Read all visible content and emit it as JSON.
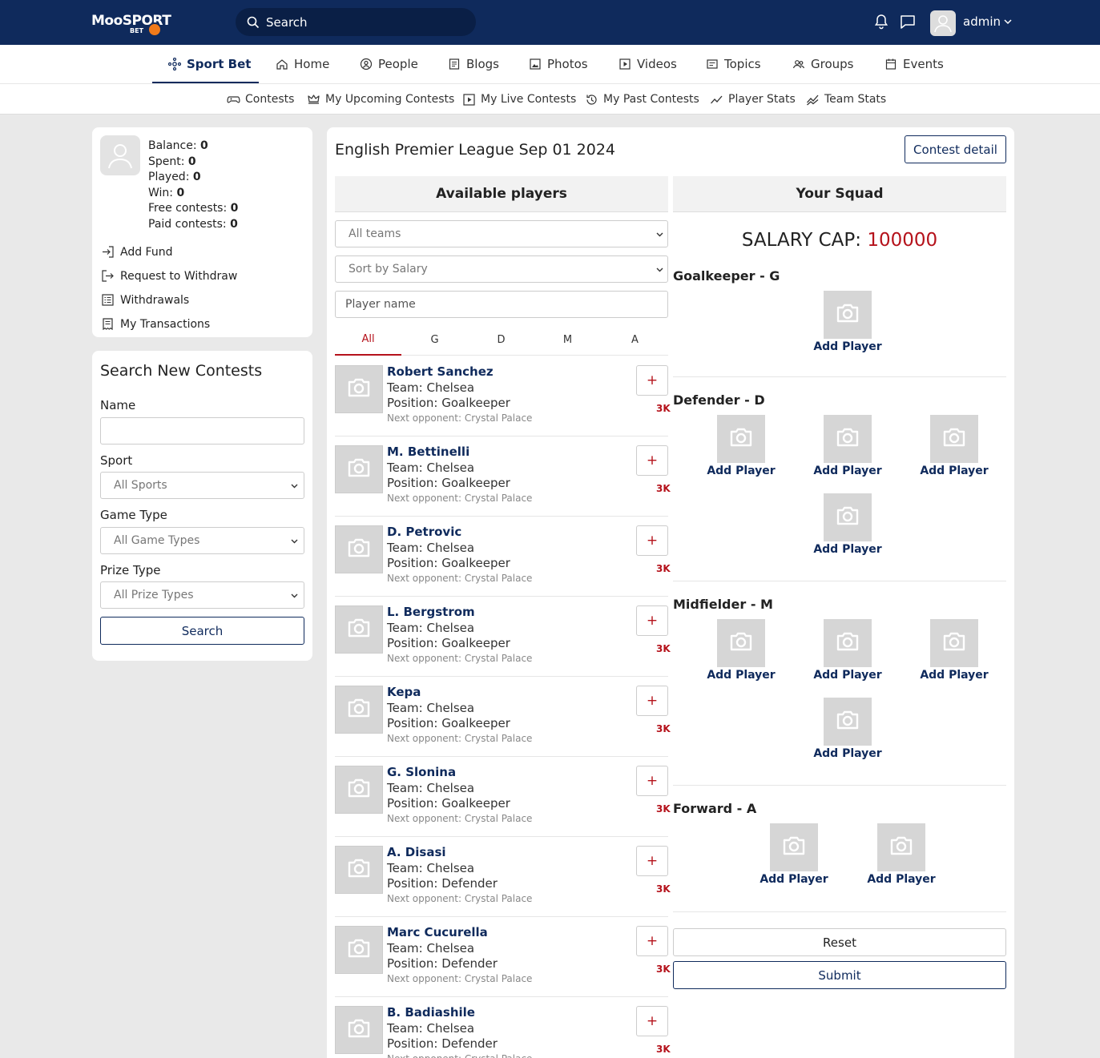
{
  "header": {
    "logo_text": "MooSPORT",
    "logo_sub": "BET",
    "search_placeholder": "Search",
    "user_name": "admin"
  },
  "main_nav": {
    "items": [
      {
        "label": "Sport Bet",
        "icon": "sport-bet-icon"
      },
      {
        "label": "Home",
        "icon": "home-icon"
      },
      {
        "label": "People",
        "icon": "people-icon"
      },
      {
        "label": "Blogs",
        "icon": "blogs-icon"
      },
      {
        "label": "Photos",
        "icon": "photos-icon"
      },
      {
        "label": "Videos",
        "icon": "videos-icon"
      },
      {
        "label": "Topics",
        "icon": "topics-icon"
      },
      {
        "label": "Groups",
        "icon": "groups-icon"
      },
      {
        "label": "Events",
        "icon": "events-icon"
      }
    ]
  },
  "sub_nav": {
    "items": [
      {
        "label": "Contests",
        "icon": "gamepad-icon"
      },
      {
        "label": "My Upcoming Contests",
        "icon": "crown-icon"
      },
      {
        "label": "My Live Contests",
        "icon": "play-icon"
      },
      {
        "label": "My Past Contests",
        "icon": "history-icon"
      },
      {
        "label": "Player Stats",
        "icon": "chart-line-icon"
      },
      {
        "label": "Team Stats",
        "icon": "chart-line-double-icon"
      }
    ]
  },
  "profile": {
    "stats": [
      {
        "label": "Balance:",
        "value": "0"
      },
      {
        "label": "Spent:",
        "value": "0"
      },
      {
        "label": "Played:",
        "value": "0"
      },
      {
        "label": "Win:",
        "value": "0"
      },
      {
        "label": "Free contests:",
        "value": "0"
      },
      {
        "label": "Paid contests:",
        "value": "0"
      }
    ],
    "links": [
      {
        "label": "Add Fund",
        "icon": "sign-in-icon"
      },
      {
        "label": "Request to Withdraw",
        "icon": "sign-out-icon"
      },
      {
        "label": "Withdrawals",
        "icon": "list-icon"
      },
      {
        "label": "My Transactions",
        "icon": "receipt-icon"
      }
    ]
  },
  "search_contests": {
    "title": "Search New Contests",
    "name_label": "Name",
    "name_value": "",
    "sport_label": "Sport",
    "sport_value": "All Sports",
    "game_type_label": "Game Type",
    "game_type_value": "All Game Types",
    "prize_type_label": "Prize Type",
    "prize_type_value": "All Prize Types",
    "search_button": "Search"
  },
  "contest": {
    "title": "English Premier League Sep 01 2024",
    "detail_button": "Contest detail",
    "available_heading": "Available players",
    "squad_heading": "Your Squad",
    "team_filter": "All teams",
    "sort_filter": "Sort by Salary",
    "player_name_placeholder": "Player name",
    "position_tabs": [
      "All",
      "G",
      "D",
      "M",
      "A"
    ],
    "active_tab": "All"
  },
  "players": [
    {
      "name": "Robert Sanchez",
      "team": "Team: Chelsea",
      "position": "Position: Goalkeeper",
      "opponent": "Next opponent: Crystal Palace",
      "salary": "3K"
    },
    {
      "name": "M. Bettinelli",
      "team": "Team: Chelsea",
      "position": "Position: Goalkeeper",
      "opponent": "Next opponent: Crystal Palace",
      "salary": "3K"
    },
    {
      "name": "D. Petrovic",
      "team": "Team: Chelsea",
      "position": "Position: Goalkeeper",
      "opponent": "Next opponent: Crystal Palace",
      "salary": "3K"
    },
    {
      "name": "L. Bergstrom",
      "team": "Team: Chelsea",
      "position": "Position: Goalkeeper",
      "opponent": "Next opponent: Crystal Palace",
      "salary": "3K"
    },
    {
      "name": "Kepa",
      "team": "Team: Chelsea",
      "position": "Position: Goalkeeper",
      "opponent": "Next opponent: Crystal Palace",
      "salary": "3K"
    },
    {
      "name": "G. Slonina",
      "team": "Team: Chelsea",
      "position": "Position: Goalkeeper",
      "opponent": "Next opponent: Crystal Palace",
      "salary": "3K"
    },
    {
      "name": "A. Disasi",
      "team": "Team: Chelsea",
      "position": "Position: Defender",
      "opponent": "Next opponent: Crystal Palace",
      "salary": "3K"
    },
    {
      "name": "Marc Cucurella",
      "team": "Team: Chelsea",
      "position": "Position: Defender",
      "opponent": "Next opponent: Crystal Palace",
      "salary": "3K"
    },
    {
      "name": "B. Badiashile",
      "team": "Team: Chelsea",
      "position": "Position: Defender",
      "opponent": "Next opponent: Crystal Palace",
      "salary": "3K"
    }
  ],
  "add_symbol": "+",
  "squad": {
    "salary_cap_label": "SALARY CAP:",
    "salary_cap_value": "100000",
    "add_player_label": "Add Player",
    "groups": [
      {
        "title": "Goalkeeper - G",
        "slots": 1
      },
      {
        "title": "Defender - D",
        "slots": 4
      },
      {
        "title": "Midfielder - M",
        "slots": 4
      },
      {
        "title": "Forward - A",
        "slots": 2
      }
    ],
    "reset_button": "Reset",
    "submit_button": "Submit"
  },
  "colors": {
    "navy": "#0f2a5c",
    "accent_red": "#b5121b"
  }
}
